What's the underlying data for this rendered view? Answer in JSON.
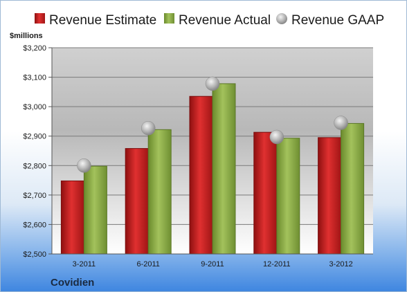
{
  "chart_data": {
    "type": "bar",
    "company": "Covidien",
    "ylabel": "$millions",
    "ylim": [
      2500,
      3200
    ],
    "yticks": [
      2500,
      2600,
      2700,
      2800,
      2900,
      3000,
      3100,
      3200
    ],
    "ytick_labels": [
      "$2,500",
      "$2,600",
      "$2,700",
      "$2,800",
      "$2,900",
      "$3,000",
      "$3,100",
      "$3,200"
    ],
    "categories": [
      "3-2011",
      "6-2011",
      "9-2011",
      "12-2011",
      "3-2012"
    ],
    "series": [
      {
        "name": "Revenue Estimate",
        "kind": "bar",
        "color": "#cc1f1f",
        "values": [
          2748,
          2858,
          3035,
          2913,
          2895
        ]
      },
      {
        "name": "Revenue Actual",
        "kind": "bar",
        "color": "#8fb04a",
        "values": [
          2798,
          2922,
          3078,
          2893,
          2943
        ]
      },
      {
        "name": "Revenue GAAP",
        "kind": "marker",
        "color": "#b8b8b8",
        "values": [
          2800,
          2927,
          3078,
          2897,
          2945
        ]
      }
    ],
    "grid": true,
    "legend_position": "top"
  }
}
